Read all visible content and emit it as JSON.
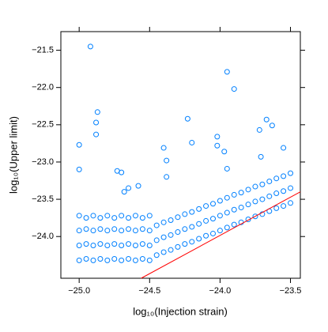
{
  "chart_data": {
    "type": "scatter",
    "xlabel": "log₁₀(Injection strain)",
    "ylabel": "log₁₀(Upper limit)",
    "xlim": [
      -25.13,
      -23.43
    ],
    "ylim": [
      -24.56,
      -21.25
    ],
    "xticks": [
      {
        "value": -25.0,
        "label": "−25.0"
      },
      {
        "value": -24.5,
        "label": "−24.5"
      },
      {
        "value": -24.0,
        "label": "−24.0"
      },
      {
        "value": -23.5,
        "label": "−23.5"
      }
    ],
    "yticks": [
      {
        "value": -24.0,
        "label": "−24.0"
      },
      {
        "value": -23.5,
        "label": "−23.5"
      },
      {
        "value": -23.0,
        "label": "−23.0"
      },
      {
        "value": -22.5,
        "label": "−22.5"
      },
      {
        "value": -22.0,
        "label": "−22.0"
      },
      {
        "value": -21.5,
        "label": "−21.5"
      }
    ],
    "points": {
      "color": "#0080ff",
      "x": [
        -25.0,
        -25.0,
        -25.0,
        -25.0,
        -24.95,
        -24.95,
        -24.95,
        -24.95,
        -24.9,
        -24.9,
        -24.9,
        -24.9,
        -24.85,
        -24.85,
        -24.85,
        -24.85,
        -24.8,
        -24.8,
        -24.8,
        -24.8,
        -24.75,
        -24.75,
        -24.75,
        -24.75,
        -24.7,
        -24.7,
        -24.7,
        -24.7,
        -24.65,
        -24.65,
        -24.65,
        -24.65,
        -24.6,
        -24.6,
        -24.6,
        -24.6,
        -24.55,
        -24.55,
        -24.55,
        -24.55,
        -24.5,
        -24.5,
        -24.5,
        -24.5,
        -24.45,
        -24.45,
        -24.45,
        -24.4,
        -24.4,
        -24.4,
        -24.35,
        -24.35,
        -24.35,
        -24.3,
        -24.3,
        -24.3,
        -24.25,
        -24.25,
        -24.25,
        -24.2,
        -24.2,
        -24.2,
        -24.15,
        -24.15,
        -24.15,
        -24.1,
        -24.1,
        -24.1,
        -24.05,
        -24.05,
        -24.05,
        -24.0,
        -24.0,
        -24.0,
        -23.95,
        -23.95,
        -23.95,
        -23.9,
        -23.9,
        -23.9,
        -23.85,
        -23.85,
        -23.85,
        -23.8,
        -23.8,
        -23.8,
        -23.75,
        -23.75,
        -23.75,
        -23.7,
        -23.7,
        -23.7,
        -23.65,
        -23.65,
        -23.65,
        -23.6,
        -23.6,
        -23.6,
        -23.55,
        -23.55,
        -23.55,
        -23.5,
        -23.5,
        -23.5,
        -24.92,
        -23.95,
        -23.9,
        -24.87,
        -24.88,
        -24.88,
        -25.0,
        -25.0,
        -24.23,
        -23.67,
        -23.63,
        -23.72,
        -24.02,
        -24.02,
        -24.2,
        -23.55,
        -24.4,
        -24.38,
        -23.97,
        -24.73,
        -24.7,
        -24.38,
        -23.71,
        -23.95,
        -24.65,
        -24.58,
        -24.68
      ],
      "y": [
        -24.32,
        -24.12,
        -23.92,
        -23.72,
        -24.3,
        -24.1,
        -23.9,
        -23.75,
        -24.32,
        -24.12,
        -23.92,
        -23.72,
        -24.3,
        -24.1,
        -23.9,
        -23.75,
        -24.32,
        -24.12,
        -23.92,
        -23.72,
        -24.3,
        -24.1,
        -23.9,
        -23.75,
        -24.32,
        -24.12,
        -23.92,
        -23.72,
        -24.3,
        -24.1,
        -23.9,
        -23.75,
        -24.32,
        -24.12,
        -23.92,
        -23.72,
        -24.3,
        -24.1,
        -23.9,
        -23.75,
        -24.32,
        -24.12,
        -23.92,
        -23.72,
        -24.25,
        -24.05,
        -23.85,
        -24.21,
        -24.01,
        -23.81,
        -24.18,
        -23.98,
        -23.78,
        -24.14,
        -23.94,
        -23.74,
        -24.1,
        -23.9,
        -23.7,
        -24.07,
        -23.87,
        -23.67,
        -24.03,
        -23.83,
        -23.63,
        -23.99,
        -23.79,
        -23.59,
        -23.96,
        -23.76,
        -23.56,
        -23.92,
        -23.72,
        -23.52,
        -23.88,
        -23.68,
        -23.48,
        -23.84,
        -23.64,
        -23.44,
        -23.81,
        -23.61,
        -23.41,
        -23.77,
        -23.57,
        -23.37,
        -23.73,
        -23.53,
        -23.33,
        -23.7,
        -23.5,
        -23.3,
        -23.66,
        -23.46,
        -23.26,
        -23.62,
        -23.42,
        -23.22,
        -23.59,
        -23.39,
        -23.19,
        -23.55,
        -23.35,
        -23.15,
        -21.45,
        -21.79,
        -22.02,
        -22.33,
        -22.47,
        -22.63,
        -22.77,
        -23.1,
        -22.42,
        -22.43,
        -22.51,
        -22.57,
        -22.66,
        -22.78,
        -22.74,
        -22.81,
        -22.81,
        -22.98,
        -22.86,
        -23.12,
        -23.14,
        -23.2,
        -22.93,
        -23.09,
        -23.35,
        -23.32,
        -23.4
      ]
    },
    "line": {
      "color": "#ff0000",
      "x": [
        -24.56,
        -23.43
      ],
      "y": [
        -24.56,
        -23.4
      ]
    }
  }
}
